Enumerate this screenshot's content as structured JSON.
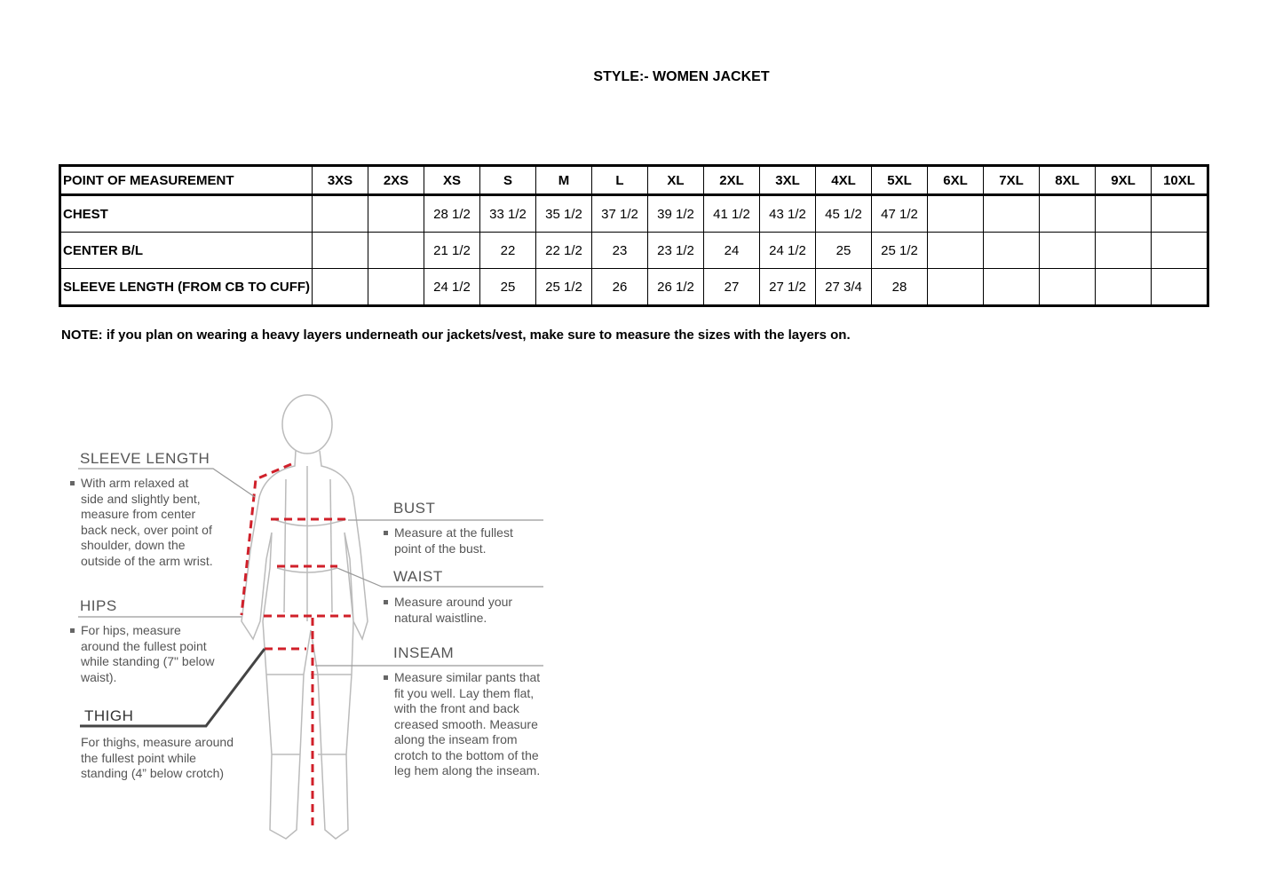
{
  "title": "STYLE:- WOMEN JACKET",
  "table": {
    "headers": [
      "POINT OF MEASUREMENT",
      "3XS",
      "2XS",
      "XS",
      "S",
      "M",
      "L",
      "XL",
      "2XL",
      "3XL",
      "4XL",
      "5XL",
      "6XL",
      "7XL",
      "8XL",
      "9XL",
      "10XL"
    ],
    "rows": [
      [
        "CHEST",
        "",
        "",
        "28 1/2",
        "33 1/2",
        "35 1/2",
        "37 1/2",
        "39 1/2",
        "41 1/2",
        "43 1/2",
        "45 1/2",
        "47 1/2",
        "",
        "",
        "",
        "",
        ""
      ],
      [
        "CENTER B/L",
        "",
        "",
        "21 1/2",
        "22",
        "22 1/2",
        "23",
        "23 1/2",
        "24",
        "24 1/2",
        "25",
        "25 1/2",
        "",
        "",
        "",
        "",
        ""
      ],
      [
        "SLEEVE LENGTH (FROM CB TO CUFF)",
        "",
        "",
        "24 1/2",
        "25",
        "25 1/2",
        "26",
        "26 1/2",
        "27",
        "27 1/2",
        "27 3/4",
        "28",
        "",
        "",
        "",
        "",
        ""
      ]
    ]
  },
  "note": "NOTE: if you plan on wearing a heavy layers underneath our jackets/vest, make sure to measure the sizes with the layers on.",
  "figure": {
    "sleeve": {
      "label": "SLEEVE LENGTH",
      "text": "With arm relaxed at side and slightly bent, measure from center back neck, over point of shoulder, down the outside of the arm wrist."
    },
    "hips": {
      "label": "HIPS",
      "text": "For hips, measure around the fullest point while standing (7\" below waist)."
    },
    "thigh": {
      "label": "THIGH",
      "text": "For thighs, measure around the fullest point while standing (4” below crotch)"
    },
    "bust": {
      "label": "BUST",
      "text": "Measure at the fullest point of the bust."
    },
    "waist": {
      "label": "WAIST",
      "text": "Measure around your natural waistline."
    },
    "inseam": {
      "label": "INSEAM",
      "text": "Measure similar pants that fit you well. Lay them flat, with the front and back creased smooth. Measure along the inseam from crotch to the bottom of the leg hem along the inseam."
    },
    "accent_color": "#d0202a"
  }
}
